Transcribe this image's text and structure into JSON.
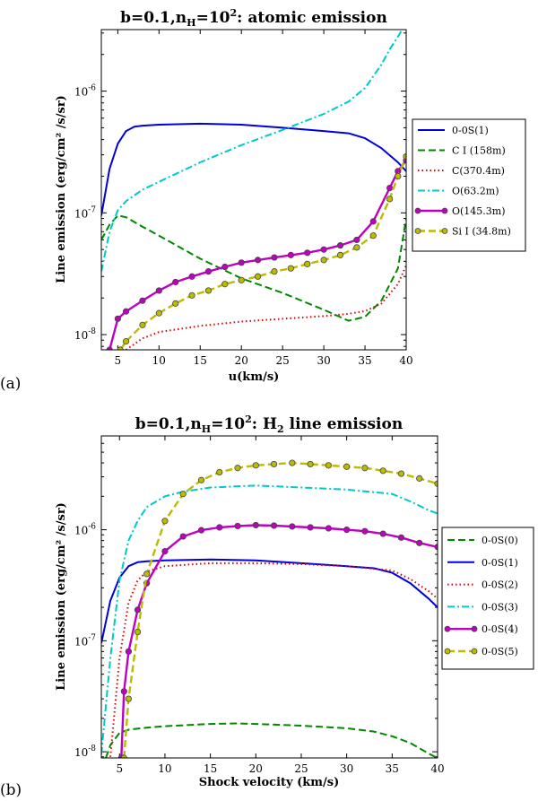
{
  "chart_data": [
    {
      "type": "line",
      "panel_label": "(a)",
      "title_main": "b=0.1,n",
      "title_sub": "H",
      "title_eq": "=10",
      "title_sup": "2",
      "title_rest": ": atomic emission",
      "xlabel": "u(km/s)",
      "ylabel": "Line emission (erg/cm² /s/sr)",
      "xlim": [
        3,
        40
      ],
      "ylim": [
        7.5e-09,
        3.2e-06
      ],
      "yscale": "log",
      "xticks": [
        5,
        10,
        15,
        20,
        25,
        30,
        35,
        40
      ],
      "yticks": [
        {
          "value": 1e-08,
          "label": "10",
          "exp": "-8"
        },
        {
          "value": 1e-07,
          "label": "10",
          "exp": "-7"
        },
        {
          "value": 1e-06,
          "label": "10",
          "exp": "-6"
        }
      ],
      "series": [
        {
          "name": "0-0S(1)",
          "color": "#0000dd",
          "style": "solid",
          "marker": false,
          "x": [
            3,
            4,
            5,
            6,
            7,
            8,
            10,
            15,
            20,
            25,
            30,
            33,
            35,
            37,
            39,
            40
          ],
          "y": [
            9.5e-08,
            2.3e-07,
            3.7e-07,
            4.7e-07,
            5.1e-07,
            5.2e-07,
            5.3e-07,
            5.4e-07,
            5.3e-07,
            5e-07,
            4.7e-07,
            4.5e-07,
            4.1e-07,
            3.4e-07,
            2.6e-07,
            2.2e-07
          ]
        },
        {
          "name": "C I (158m)",
          "color": "#008800",
          "style": "dashed",
          "marker": false,
          "x": [
            3,
            4,
            5,
            6,
            8,
            10,
            15,
            20,
            25,
            30,
            33,
            35,
            37,
            39,
            40
          ],
          "y": [
            6e-08,
            8e-08,
            9.5e-08,
            9.2e-08,
            7.7e-08,
            6.5e-08,
            4.2e-08,
            2.9e-08,
            2.2e-08,
            1.6e-08,
            1.3e-08,
            1.4e-08,
            1.9e-08,
            3.5e-08,
            9e-08
          ]
        },
        {
          "name": "C(370.4m)",
          "color": "#dd0000",
          "style": "dotted",
          "marker": false,
          "x": [
            6,
            8,
            10,
            15,
            20,
            25,
            30,
            33,
            35,
            37,
            39,
            40
          ],
          "y": [
            7.5e-09,
            9.3e-09,
            1.05e-08,
            1.18e-08,
            1.28e-08,
            1.35e-08,
            1.42e-08,
            1.48e-08,
            1.56e-08,
            1.8e-08,
            2.6e-08,
            3.7e-08
          ]
        },
        {
          "name": "O(63.2m)",
          "color": "#00c8c8",
          "style": "dashdot",
          "marker": false,
          "x": [
            3,
            4,
            5,
            6,
            8,
            10,
            15,
            20,
            25,
            30,
            33,
            35,
            37,
            38,
            39,
            39.5
          ],
          "y": [
            3.3e-08,
            7e-08,
            1.05e-07,
            1.25e-07,
            1.55e-07,
            1.8e-07,
            2.6e-07,
            3.6e-07,
            4.8e-07,
            6.5e-07,
            8.2e-07,
            1.06e-06,
            1.65e-06,
            2.2e-06,
            2.8e-06,
            3.2e-06
          ]
        },
        {
          "name": "O(145.3m)",
          "color": "#c000c0",
          "style": "solid",
          "marker": true,
          "x": [
            4,
            5,
            6,
            8,
            10,
            12,
            14,
            16,
            18,
            20,
            22,
            24,
            26,
            28,
            30,
            32,
            34,
            36,
            38,
            39,
            40
          ],
          "y": [
            7.5e-09,
            1.35e-08,
            1.55e-08,
            1.9e-08,
            2.3e-08,
            2.7e-08,
            3e-08,
            3.3e-08,
            3.6e-08,
            3.9e-08,
            4.1e-08,
            4.3e-08,
            4.5e-08,
            4.7e-08,
            5e-08,
            5.4e-08,
            6e-08,
            8.5e-08,
            1.6e-07,
            2.2e-07,
            2.7e-07
          ]
        },
        {
          "name": "Si I (34.8m)",
          "color": "#bbbb00",
          "style": "dashed",
          "marker": true,
          "x": [
            5.3,
            6,
            8,
            10,
            12,
            14,
            16,
            18,
            20,
            22,
            24,
            26,
            28,
            30,
            32,
            34,
            36,
            38,
            39,
            40
          ],
          "y": [
            7.5e-09,
            8.8e-09,
            1.2e-08,
            1.5e-08,
            1.8e-08,
            2.1e-08,
            2.3e-08,
            2.6e-08,
            2.8e-08,
            3e-08,
            3.3e-08,
            3.5e-08,
            3.8e-08,
            4.1e-08,
            4.5e-08,
            5.2e-08,
            6.5e-08,
            1.3e-07,
            2e-07,
            2.9e-07
          ]
        }
      ]
    },
    {
      "type": "line",
      "panel_label": "(b)",
      "title_main": "b=0.1,n",
      "title_sub": "H",
      "title_eq": "=10",
      "title_sup": "2",
      "title_rest": ": H",
      "title_sub2": "2",
      "title_end": " line emission",
      "xlabel": "Shock velocity (km/s)",
      "ylabel": "Line emission (erg/cm² /s/sr)",
      "xlim": [
        3,
        40
      ],
      "ylim": [
        8.8e-09,
        7e-06
      ],
      "yscale": "log",
      "xticks": [
        5,
        10,
        15,
        20,
        25,
        30,
        35,
        40
      ],
      "yticks": [
        {
          "value": 1e-08,
          "label": "10",
          "exp": "-8"
        },
        {
          "value": 1e-07,
          "label": "10",
          "exp": "-7"
        },
        {
          "value": 1e-06,
          "label": "10",
          "exp": "-6"
        }
      ],
      "series": [
        {
          "name": "0-0S(0)",
          "color": "#008800",
          "style": "dashed",
          "marker": false,
          "x": [
            3.5,
            4,
            5,
            6,
            8,
            10,
            15,
            18,
            20,
            25,
            30,
            33,
            35,
            37,
            38.5,
            39.5,
            40
          ],
          "y": [
            8.8e-09,
            1.15e-08,
            1.48e-08,
            1.58e-08,
            1.65e-08,
            1.7e-08,
            1.78e-08,
            1.8e-08,
            1.78e-08,
            1.72e-08,
            1.63e-08,
            1.52e-08,
            1.38e-08,
            1.2e-08,
            1.02e-08,
            9.2e-09,
            8.8e-09
          ]
        },
        {
          "name": "0-0S(1)",
          "color": "#0000dd",
          "style": "solid",
          "marker": false,
          "x": [
            3,
            4,
            5,
            6,
            7,
            8,
            10,
            15,
            20,
            25,
            30,
            33,
            35,
            37,
            39,
            40
          ],
          "y": [
            9.5e-08,
            2.3e-07,
            3.7e-07,
            4.7e-07,
            5.1e-07,
            5.2e-07,
            5.3e-07,
            5.4e-07,
            5.3e-07,
            5e-07,
            4.7e-07,
            4.5e-07,
            4.1e-07,
            3.3e-07,
            2.4e-07,
            2e-07
          ]
        },
        {
          "name": "0-0S(2)",
          "color": "#dd0000",
          "style": "dotted",
          "marker": false,
          "x": [
            4,
            5,
            6,
            7,
            8,
            10,
            15,
            20,
            25,
            30,
            35,
            37,
            39,
            40
          ],
          "y": [
            9e-09,
            7e-08,
            2.2e-07,
            3.5e-07,
            4.2e-07,
            4.7e-07,
            5e-07,
            5e-07,
            4.9e-07,
            4.7e-07,
            4.3e-07,
            3.6e-07,
            2.8e-07,
            2.4e-07
          ]
        },
        {
          "name": "0-0S(3)",
          "color": "#00c8c8",
          "style": "dashdot",
          "marker": false,
          "x": [
            3,
            4,
            5,
            6,
            7,
            8,
            10,
            12,
            15,
            20,
            25,
            30,
            35,
            37,
            39,
            40
          ],
          "y": [
            9.5e-09,
            7e-08,
            3.5e-07,
            8e-07,
            1.2e-06,
            1.6e-06,
            2e-06,
            2.2e-06,
            2.4e-06,
            2.5e-06,
            2.4e-06,
            2.3e-06,
            2.1e-06,
            1.8e-06,
            1.5e-06,
            1.4e-06
          ]
        },
        {
          "name": "0-0S(4)",
          "color": "#c000c0",
          "style": "solid",
          "marker": true,
          "x": [
            5.2,
            5.5,
            6,
            7,
            8,
            10,
            12,
            14,
            16,
            18,
            20,
            22,
            24,
            26,
            28,
            30,
            32,
            34,
            36,
            38,
            40
          ],
          "y": [
            8.8e-09,
            3.5e-08,
            8e-08,
            1.9e-07,
            3.3e-07,
            6.4e-07,
            8.7e-07,
            9.9e-07,
            1.05e-06,
            1.08e-06,
            1.1e-06,
            1.09e-06,
            1.07e-06,
            1.05e-06,
            1.03e-06,
            1e-06,
            9.7e-07,
            9.2e-07,
            8.5e-07,
            7.6e-07,
            7e-07
          ]
        },
        {
          "name": "0-0S(5)",
          "color": "#bbbb00",
          "style": "dashed",
          "marker": true,
          "x": [
            5.5,
            6,
            7,
            8,
            10,
            12,
            14,
            16,
            18,
            20,
            22,
            24,
            26,
            28,
            30,
            32,
            34,
            36,
            38,
            40
          ],
          "y": [
            8.8e-09,
            3e-08,
            1.2e-07,
            4e-07,
            1.2e-06,
            2.1e-06,
            2.8e-06,
            3.3e-06,
            3.6e-06,
            3.8e-06,
            3.9e-06,
            4e-06,
            3.9e-06,
            3.8e-06,
            3.7e-06,
            3.6e-06,
            3.4e-06,
            3.2e-06,
            2.9e-06,
            2.6e-06
          ]
        }
      ]
    }
  ]
}
